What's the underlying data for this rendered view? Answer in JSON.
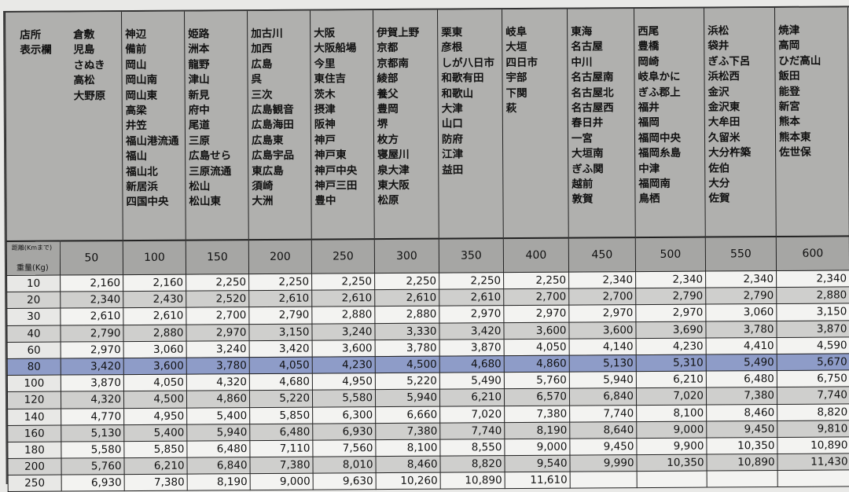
{
  "header_label": [
    "店所",
    "表示欄"
  ],
  "store_groups": [
    [
      "倉敷",
      "児島",
      "さぬき",
      "高松",
      "大野原"
    ],
    [
      "神辺",
      "備前",
      "岡山",
      "岡山南",
      "岡山東",
      "高梁",
      "井笠",
      "福山港流通",
      "福山",
      "福山北",
      "新居浜",
      "四国中央"
    ],
    [
      "姫路",
      "洲本",
      "龍野",
      "津山",
      "新見",
      "府中",
      "尾道",
      "三原",
      "広島せら",
      "三原流通",
      "松山",
      "松山東"
    ],
    [
      "加古川",
      "加西",
      "広島",
      "呉",
      "三次",
      "広島観音",
      "広島海田",
      "広島東",
      "広島宇品",
      "東広島",
      "須崎",
      "大洲"
    ],
    [
      "大阪",
      "大阪船場",
      "今里",
      "東住吉",
      "茨木",
      "摂津",
      "阪神",
      "神戸",
      "神戸東",
      "神戸中央",
      "神戸三田",
      "豊中"
    ],
    [
      "伊賀上野",
      "京都",
      "京都南",
      "綾部",
      "養父",
      "豊岡",
      "堺",
      "枚方",
      "寝屋川",
      "泉大津",
      "東大阪",
      "松原"
    ],
    [
      "栗東",
      "彦根",
      "しが八日市",
      "和歌有田",
      "和歌山",
      "大津",
      "山口",
      "防府",
      "江津",
      "益田"
    ],
    [
      "岐阜",
      "大垣",
      "四日市",
      "宇部",
      "下関",
      "萩"
    ],
    [
      "東海",
      "名古屋",
      "中川",
      "名古屋南",
      "名古屋北",
      "名古屋西",
      "春日井",
      "一宮",
      "大垣南",
      "ぎふ関",
      "越前",
      "敦賀"
    ],
    [
      "西尾",
      "豊橋",
      "岡崎",
      "岐阜かに",
      "ぎふ郡上",
      "福井",
      "福岡",
      "福岡中央",
      "福岡糸島",
      "中津",
      "福岡南",
      "鳥栖"
    ],
    [
      "浜松",
      "袋井",
      "ぎふ下呂",
      "浜松西",
      "金沢",
      "金沢東",
      "大牟田",
      "久留米",
      "大分杵築",
      "佐伯",
      "大分",
      "佐賀"
    ],
    [
      "焼津",
      "高岡",
      "ひだ高山",
      "飯田",
      "能登",
      "新宮",
      "熊本",
      "熊本東",
      "佐世保"
    ]
  ],
  "distance_label": "距離(Kmまで)",
  "weight_label": "重量(Kg)",
  "distances": [
    "50",
    "100",
    "150",
    "200",
    "250",
    "300",
    "350",
    "400",
    "450",
    "500",
    "550",
    "600"
  ],
  "highlight_color": "#8e9cc8",
  "highlighted_weight": "80",
  "rows": [
    {
      "weight": "10",
      "prices": [
        "2,160",
        "2,160",
        "2,250",
        "2,250",
        "2,250",
        "2,250",
        "2,250",
        "2,250",
        "2,340",
        "2,340",
        "2,340",
        "2,340"
      ]
    },
    {
      "weight": "20",
      "prices": [
        "2,340",
        "2,430",
        "2,520",
        "2,610",
        "2,610",
        "2,610",
        "2,610",
        "2,700",
        "2,700",
        "2,790",
        "2,790",
        "2,880"
      ]
    },
    {
      "weight": "30",
      "prices": [
        "2,610",
        "2,610",
        "2,700",
        "2,790",
        "2,880",
        "2,880",
        "2,970",
        "2,970",
        "2,970",
        "2,970",
        "3,060",
        "3,150"
      ]
    },
    {
      "weight": "40",
      "prices": [
        "2,790",
        "2,880",
        "2,970",
        "3,150",
        "3,240",
        "3,330",
        "3,420",
        "3,600",
        "3,600",
        "3,690",
        "3,780",
        "3,870"
      ]
    },
    {
      "weight": "60",
      "prices": [
        "2,970",
        "3,060",
        "3,240",
        "3,420",
        "3,600",
        "3,780",
        "3,870",
        "4,050",
        "4,140",
        "4,230",
        "4,410",
        "4,590"
      ]
    },
    {
      "weight": "80",
      "prices": [
        "3,420",
        "3,600",
        "3,780",
        "4,050",
        "4,230",
        "4,500",
        "4,680",
        "4,860",
        "5,130",
        "5,310",
        "5,490",
        "5,670"
      ]
    },
    {
      "weight": "100",
      "prices": [
        "3,870",
        "4,050",
        "4,320",
        "4,680",
        "4,950",
        "5,220",
        "5,490",
        "5,760",
        "5,940",
        "6,210",
        "6,480",
        "6,750"
      ]
    },
    {
      "weight": "120",
      "prices": [
        "4,320",
        "4,500",
        "4,860",
        "5,220",
        "5,580",
        "5,940",
        "6,210",
        "6,570",
        "6,840",
        "7,020",
        "7,380",
        "7,740"
      ]
    },
    {
      "weight": "140",
      "prices": [
        "4,770",
        "4,950",
        "5,400",
        "5,850",
        "6,300",
        "6,660",
        "7,020",
        "7,380",
        "7,740",
        "8,100",
        "8,460",
        "8,820"
      ]
    },
    {
      "weight": "160",
      "prices": [
        "5,130",
        "5,400",
        "5,940",
        "6,480",
        "6,930",
        "7,380",
        "7,740",
        "8,190",
        "8,640",
        "9,000",
        "9,450",
        "9,810"
      ]
    },
    {
      "weight": "180",
      "prices": [
        "5,580",
        "5,850",
        "6,480",
        "7,110",
        "7,560",
        "8,100",
        "8,550",
        "9,000",
        "9,450",
        "9,900",
        "10,350",
        "10,890"
      ]
    },
    {
      "weight": "200",
      "prices": [
        "5,760",
        "6,210",
        "6,840",
        "7,380",
        "8,010",
        "8,460",
        "8,820",
        "9,540",
        "9,990",
        "10,350",
        "10,890",
        "11,430"
      ]
    },
    {
      "weight": "250",
      "prices": [
        "6,930",
        "7,380",
        "8,190",
        "9,000",
        "9,630",
        "10,260",
        "10,890",
        "11,610",
        "",
        "",
        "",
        ""
      ]
    }
  ]
}
